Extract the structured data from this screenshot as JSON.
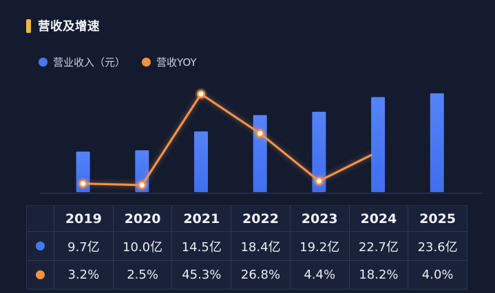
{
  "page": {
    "background": "#141b2f"
  },
  "header": {
    "title": "营收及增速",
    "accent_color": "#f0b83e"
  },
  "legend": [
    {
      "key": "revenue",
      "label": "营业收入（元）",
      "color": "#4678f2"
    },
    {
      "key": "yoy",
      "label": "营收YOY",
      "color": "#f5913f"
    }
  ],
  "chart_data": {
    "type": "combo",
    "categories": [
      "2019",
      "2020",
      "2021",
      "2022",
      "2023",
      "2024",
      "2025"
    ],
    "series": [
      {
        "name": "营业收入（元）",
        "type": "bar",
        "unit": "亿",
        "values": [
          9.7,
          10.0,
          14.5,
          18.4,
          19.2,
          22.7,
          23.6
        ],
        "color": "#4678f2"
      },
      {
        "name": "营收YOY",
        "type": "line",
        "unit": "%",
        "values": [
          3.2,
          2.5,
          45.3,
          26.8,
          4.4,
          18.2,
          4.0
        ],
        "color": "#f2924a",
        "markers_drawn_through": "2023",
        "partial_segment_toward": "2024"
      }
    ],
    "title": "营收及增速",
    "xlabel": "",
    "ylabel": "",
    "grid": false,
    "axes_labels_visible": false,
    "legend_position": "top-left",
    "x_labels_shown_in_table": true
  },
  "table": {
    "headers": [
      "2019",
      "2020",
      "2021",
      "2022",
      "2023",
      "2024",
      "2025"
    ],
    "rows": [
      {
        "key": "revenue",
        "dot_color": "#4678f2",
        "cells": [
          "9.7亿",
          "10.0亿",
          "14.5亿",
          "18.4亿",
          "19.2亿",
          "22.7亿",
          "23.6亿"
        ]
      },
      {
        "key": "yoy",
        "dot_color": "#f5913f",
        "cells": [
          "3.2%",
          "2.5%",
          "45.3%",
          "26.8%",
          "4.4%",
          "18.2%",
          "4.0%"
        ]
      }
    ]
  },
  "layout_hints": {
    "bar_color_top": "#5583f7",
    "bar_color_bottom": "#3f6ef0",
    "axis_line_color": "rgba(150,170,222,0.18)"
  }
}
